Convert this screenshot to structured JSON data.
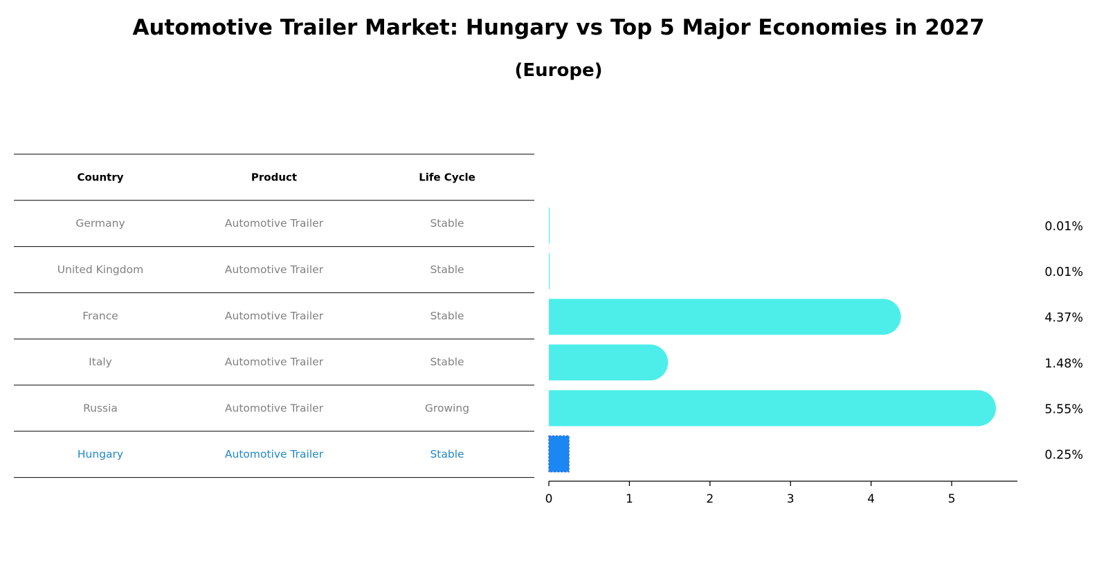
{
  "title": "Automotive Trailer Market: Hungary vs Top 5 Major Economies in 2027",
  "subtitle": "(Europe)",
  "table": {
    "headers": [
      "Country",
      "Product",
      "Life Cycle"
    ],
    "rows": [
      {
        "country": "Germany",
        "product": "Automotive Trailer",
        "life_cycle": "Stable",
        "highlight": false
      },
      {
        "country": "United Kingdom",
        "product": "Automotive Trailer",
        "life_cycle": "Stable",
        "highlight": false
      },
      {
        "country": "France",
        "product": "Automotive Trailer",
        "life_cycle": "Stable",
        "highlight": false
      },
      {
        "country": "Italy",
        "product": "Automotive Trailer",
        "life_cycle": "Stable",
        "highlight": false
      },
      {
        "country": "Russia",
        "product": "Automotive Trailer",
        "life_cycle": "Growing",
        "highlight": false
      },
      {
        "country": "Hungary",
        "product": "Automotive Trailer",
        "life_cycle": "Stable",
        "highlight": true
      }
    ]
  },
  "colors": {
    "bar": "#4deeea",
    "highlight_bar": "#1b87f2",
    "highlight_text": "#1f87c8",
    "muted_text": "#808080",
    "line": "#000000"
  },
  "chart_data": {
    "type": "bar",
    "orientation": "horizontal",
    "categories": [
      "Germany",
      "United Kingdom",
      "France",
      "Italy",
      "Russia",
      "Hungary"
    ],
    "values": [
      0.01,
      0.01,
      4.37,
      1.48,
      5.55,
      0.25
    ],
    "value_labels": [
      "0.01%",
      "0.01%",
      "4.37%",
      "1.48%",
      "5.55%",
      "0.25%"
    ],
    "xlim": [
      0,
      5.83
    ],
    "xticks": [
      0,
      1,
      2,
      3,
      4,
      5
    ],
    "xtick_labels": [
      "0",
      "1",
      "2",
      "3",
      "4",
      "5"
    ],
    "highlight_index": 5,
    "xlabel": "",
    "ylabel": ""
  }
}
